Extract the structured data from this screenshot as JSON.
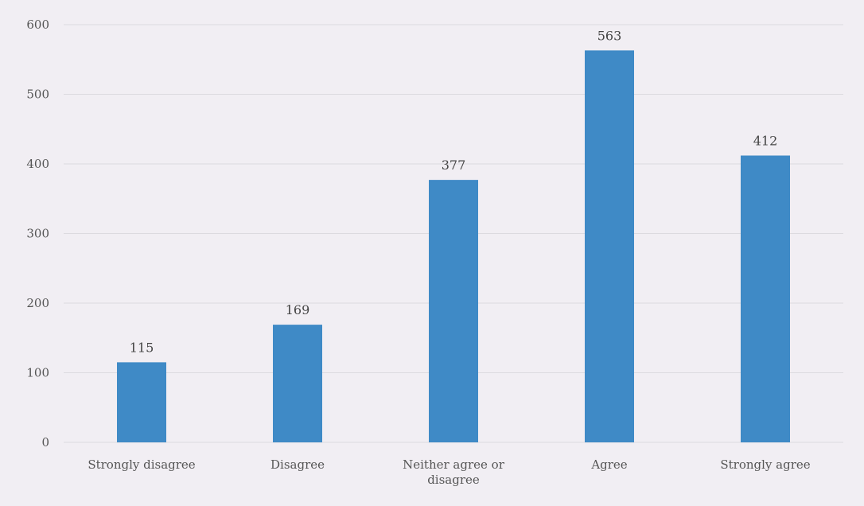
{
  "chart_data": {
    "type": "bar",
    "title": "",
    "xlabel": "",
    "ylabel": "",
    "categories": [
      [
        "Strongly disagree"
      ],
      [
        "Disagree"
      ],
      [
        "Neither agree or",
        "disagree"
      ],
      [
        "Agree"
      ],
      [
        "Strongly agree"
      ]
    ],
    "values": [
      115,
      169,
      377,
      563,
      412
    ],
    "ylim": [
      0,
      600
    ],
    "yticks": [
      0,
      100,
      200,
      300,
      400,
      500,
      600
    ],
    "grid": true,
    "legend": "none",
    "colors": {
      "bar": "#3f8ac6",
      "grid": "#dcdadf",
      "background": "#f1eef3"
    }
  }
}
